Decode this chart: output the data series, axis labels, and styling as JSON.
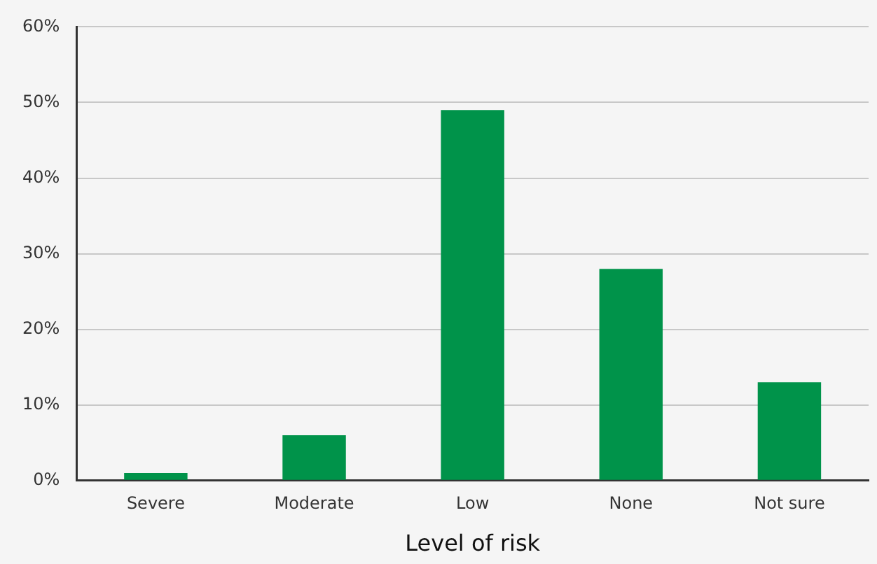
{
  "chart_data": {
    "type": "bar",
    "xlabel": "Level of risk",
    "categories": [
      "Severe",
      "Moderate",
      "Low",
      "None",
      "Not sure"
    ],
    "values": [
      1,
      6,
      49,
      28,
      13
    ],
    "color": "#00934a",
    "ylim": [
      0,
      60
    ],
    "yticks": [
      {
        "value": 0,
        "label": "0%"
      },
      {
        "value": 10,
        "label": "10%"
      },
      {
        "value": 20,
        "label": "20%"
      },
      {
        "value": 30,
        "label": "30%"
      },
      {
        "value": 40,
        "label": "40%"
      },
      {
        "value": 50,
        "label": "50%"
      },
      {
        "value": 60,
        "label": "60%"
      }
    ],
    "grid": "y"
  }
}
